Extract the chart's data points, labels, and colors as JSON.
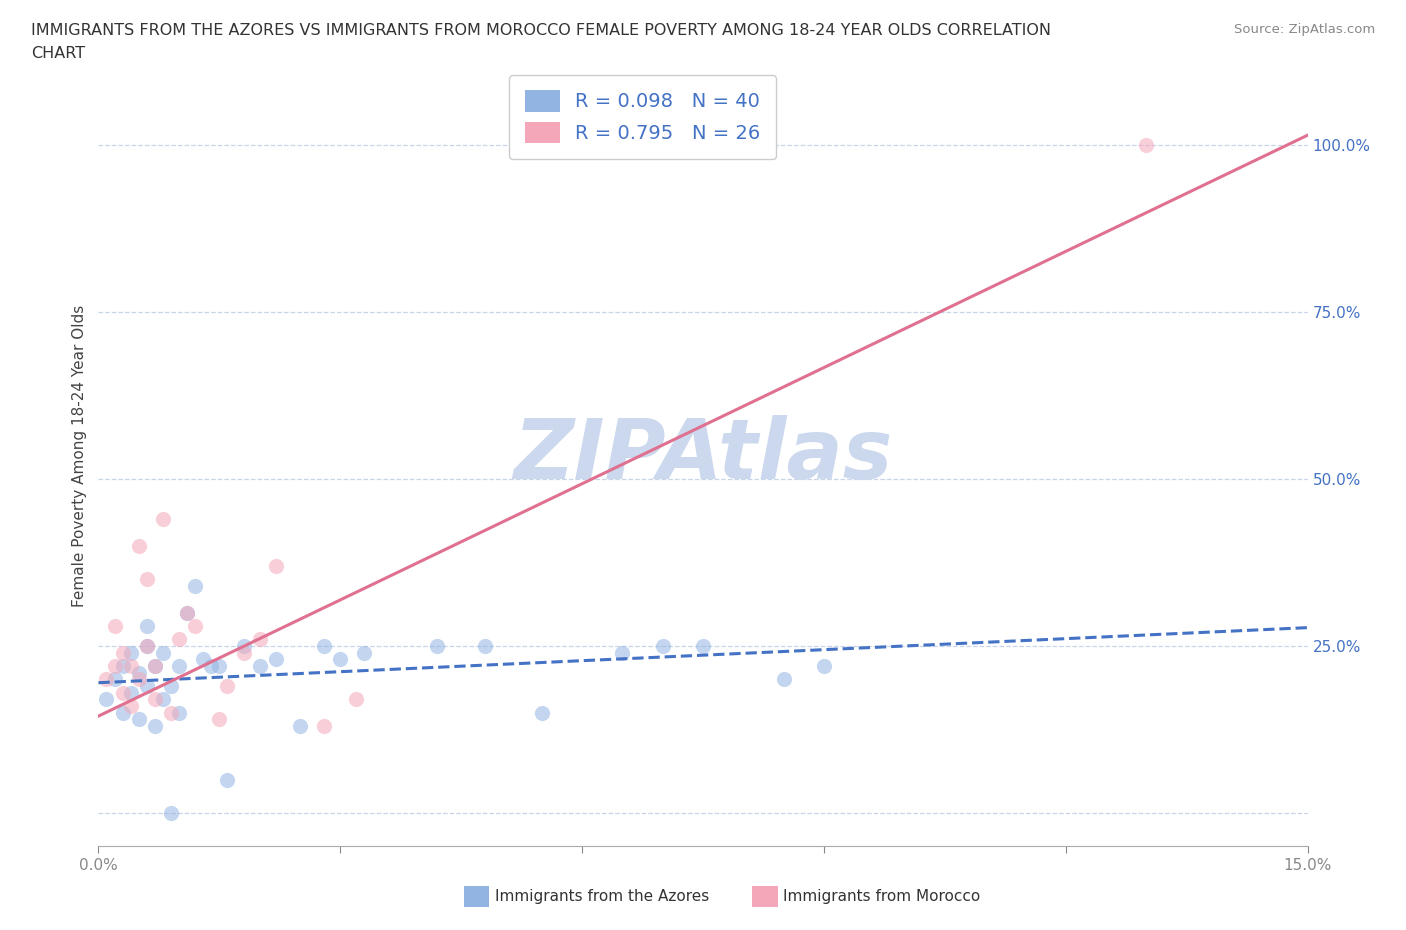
{
  "title_line1": "IMMIGRANTS FROM THE AZORES VS IMMIGRANTS FROM MOROCCO FEMALE POVERTY AMONG 18-24 YEAR OLDS CORRELATION",
  "title_line2": "CHART",
  "source_text": "Source: ZipAtlas.com",
  "ylabel": "Female Poverty Among 18-24 Year Olds",
  "legend_labels": [
    "Immigrants from the Azores",
    "Immigrants from Morocco"
  ],
  "legend_r": [
    "R = 0.098",
    "R = 0.795"
  ],
  "legend_n": [
    "N = 40",
    "N = 26"
  ],
  "azores_color": "#92b4e3",
  "morocco_color": "#f4a7b9",
  "azores_line_color": "#4472c4",
  "morocco_line_color": "#e07090",
  "background_color": "#ffffff",
  "watermark_color": "#ccd8ee",
  "xlim": [
    0.0,
    0.15
  ],
  "ylim": [
    -0.05,
    1.12
  ],
  "yticks": [
    0.0,
    0.25,
    0.5,
    0.75,
    1.0
  ],
  "ytick_labels": [
    "",
    "25.0%",
    "50.0%",
    "75.0%",
    "100.0%"
  ],
  "xticks": [
    0.0,
    0.03,
    0.06,
    0.09,
    0.12,
    0.15
  ],
  "xtick_labels": [
    "0.0%",
    "",
    "",
    "",
    "",
    "15.0%"
  ],
  "azores_x": [
    0.001,
    0.002,
    0.003,
    0.003,
    0.004,
    0.004,
    0.005,
    0.005,
    0.006,
    0.006,
    0.006,
    0.007,
    0.007,
    0.008,
    0.008,
    0.009,
    0.009,
    0.01,
    0.01,
    0.011,
    0.012,
    0.013,
    0.014,
    0.015,
    0.016,
    0.018,
    0.02,
    0.022,
    0.025,
    0.028,
    0.03,
    0.033,
    0.042,
    0.048,
    0.055,
    0.065,
    0.07,
    0.075,
    0.085,
    0.09
  ],
  "azores_y": [
    0.17,
    0.2,
    0.15,
    0.22,
    0.18,
    0.24,
    0.14,
    0.21,
    0.19,
    0.25,
    0.28,
    0.13,
    0.22,
    0.17,
    0.24,
    0.0,
    0.19,
    0.15,
    0.22,
    0.3,
    0.34,
    0.23,
    0.22,
    0.22,
    0.05,
    0.25,
    0.22,
    0.23,
    0.13,
    0.25,
    0.23,
    0.24,
    0.25,
    0.25,
    0.15,
    0.24,
    0.25,
    0.25,
    0.2,
    0.22
  ],
  "morocco_x": [
    0.001,
    0.002,
    0.002,
    0.003,
    0.003,
    0.004,
    0.004,
    0.005,
    0.005,
    0.006,
    0.006,
    0.007,
    0.007,
    0.008,
    0.009,
    0.01,
    0.011,
    0.012,
    0.015,
    0.016,
    0.018,
    0.02,
    0.022,
    0.028,
    0.032,
    0.13
  ],
  "morocco_y": [
    0.2,
    0.22,
    0.28,
    0.18,
    0.24,
    0.16,
    0.22,
    0.2,
    0.4,
    0.25,
    0.35,
    0.17,
    0.22,
    0.44,
    0.15,
    0.26,
    0.3,
    0.28,
    0.14,
    0.19,
    0.24,
    0.26,
    0.37,
    0.13,
    0.17,
    1.0
  ],
  "title_fontsize": 11.5,
  "axis_label_fontsize": 11,
  "tick_fontsize": 11,
  "legend_fontsize": 14,
  "source_fontsize": 9.5,
  "marker_size": 120,
  "azores_trend_slope": 0.55,
  "azores_trend_intercept": 0.195,
  "morocco_trend_slope": 5.8,
  "morocco_trend_intercept": 0.145
}
